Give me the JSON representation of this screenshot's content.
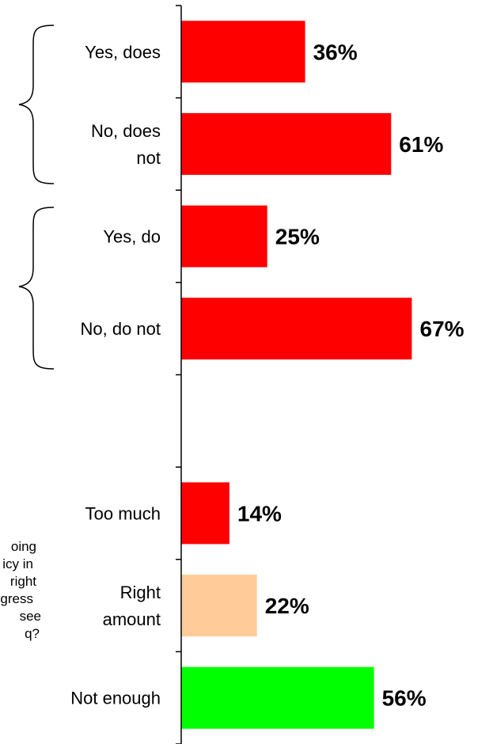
{
  "chart_data": {
    "type": "bar",
    "orientation": "horizontal",
    "title": "",
    "xlabel": "",
    "ylabel": "",
    "xlim": [
      0,
      100
    ],
    "grid": false,
    "legend": "none",
    "value_suffix": "%",
    "categories": [
      {
        "label": "Yes, does",
        "value": 36,
        "color": "#ff0000"
      },
      {
        "label": "No, does not",
        "value": 61,
        "color": "#ff0000"
      },
      {
        "label": "Yes, do",
        "value": 25,
        "color": "#ff0000"
      },
      {
        "label": "No, do not",
        "value": 67,
        "color": "#ff0000"
      },
      {
        "label": "",
        "value": null,
        "color": ""
      },
      {
        "label": "Too much",
        "value": 14,
        "color": "#ff0000"
      },
      {
        "label": "Right amount",
        "value": 22,
        "color": "#ffcc99"
      },
      {
        "label": "Not enough",
        "value": 56,
        "color": "#00ff00"
      }
    ],
    "category_display_lines": [
      [
        "Yes, does"
      ],
      [
        "No, does",
        "not"
      ],
      [
        "Yes, do"
      ],
      [
        "No, do not"
      ],
      [],
      [
        "Too much"
      ],
      [
        "Right",
        "amount"
      ],
      [
        "Not enough"
      ]
    ],
    "question_text_fragments": [
      "oing",
      "icy in",
      "right",
      "gress",
      "see",
      "q?"
    ]
  }
}
